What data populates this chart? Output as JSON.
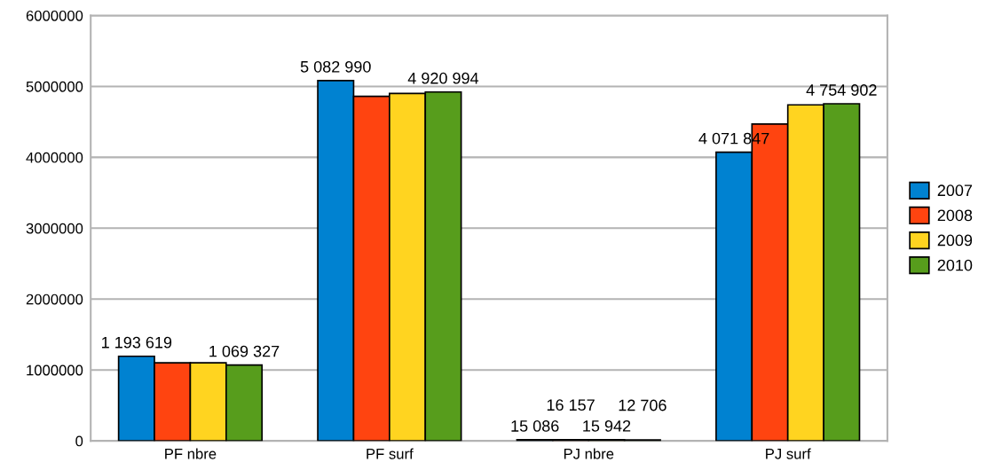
{
  "chart_data": {
    "type": "bar",
    "categories": [
      "PF nbre",
      "PF surf",
      "PJ nbre",
      "PJ surf"
    ],
    "series": [
      {
        "name": "2007",
        "color": "#0082d1",
        "values": [
          1193619,
          5082990,
          15086,
          4071847
        ],
        "value_labels": [
          "1 193 619",
          "5 082 990",
          "15 086",
          "4 071 847"
        ]
      },
      {
        "name": "2008",
        "color": "#ff4410",
        "values": [
          1100000,
          4860000,
          16157,
          4470000
        ],
        "value_labels": [
          null,
          null,
          "16 157",
          null
        ]
      },
      {
        "name": "2009",
        "color": "#ffd420",
        "values": [
          1100000,
          4900000,
          15942,
          4740000
        ],
        "value_labels": [
          null,
          null,
          "15 942",
          null
        ]
      },
      {
        "name": "2010",
        "color": "#579d1c",
        "values": [
          1069327,
          4920994,
          12706,
          4754902
        ],
        "value_labels": [
          "1 069 327",
          "4 920 994",
          "12 706",
          "4 754 902"
        ]
      }
    ],
    "ylim": [
      0,
      6000000
    ],
    "yticks": [
      0,
      1000000,
      2000000,
      3000000,
      4000000,
      5000000,
      6000000
    ],
    "grid": "y",
    "legend": "right"
  }
}
